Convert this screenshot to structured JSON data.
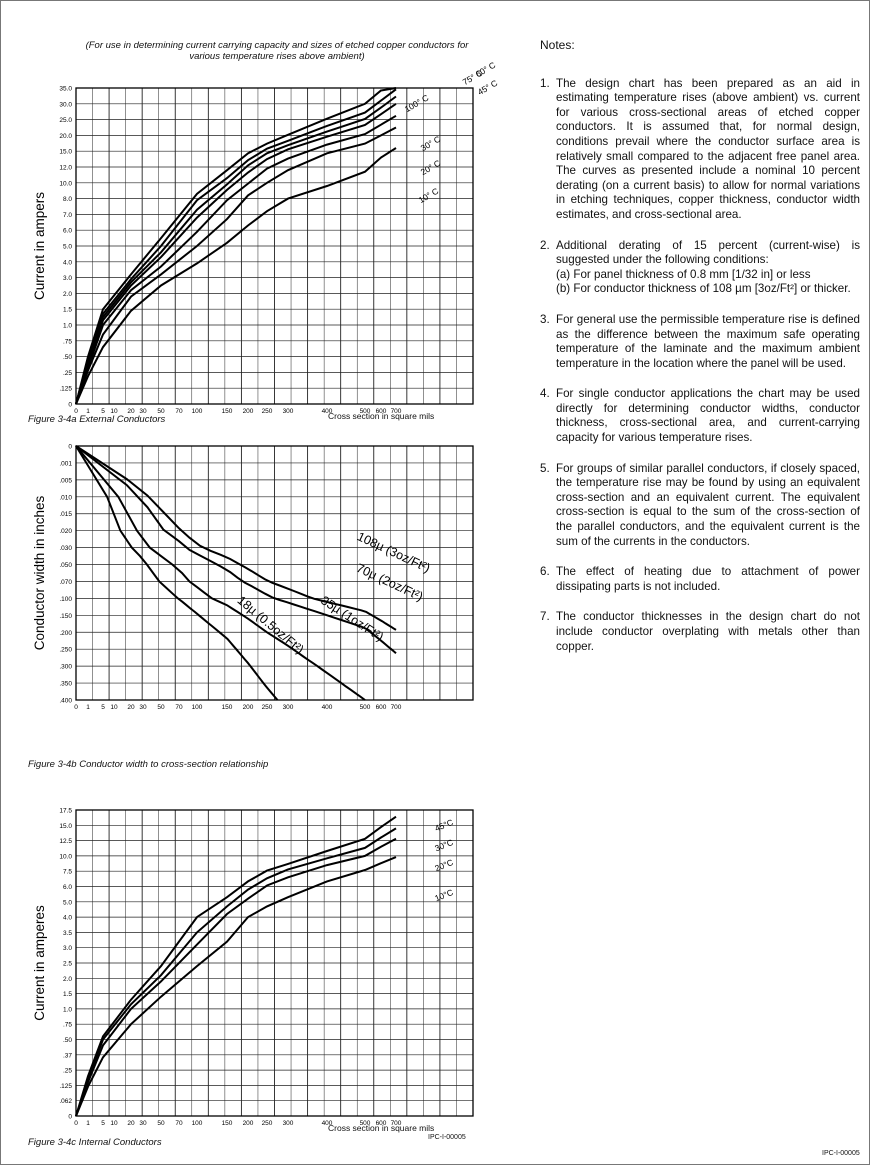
{
  "header_text": "(For use in determining current carrying capacity and sizes of etched copper conductors for various temperature rises above ambient)",
  "chart_data": [
    {
      "type": "line",
      "caption": "Figure 3-4a  External Conductors",
      "xlabel": "Cross section in square mils",
      "ylabel": "Current in ampers",
      "xticks": [
        "0",
        "1",
        "5",
        "10",
        "20",
        "30",
        "50",
        "70",
        "100",
        "150",
        "200",
        "250",
        "300",
        "400",
        "500",
        "600",
        "700"
      ],
      "yticks": [
        "35.0",
        "30.0",
        "25.0",
        "20.0",
        "15.0",
        "12.0",
        "10.0",
        "8.0",
        "7.0",
        "6.0",
        "5.0",
        "4.0",
        "3.0",
        "2.0",
        "1.5",
        "1.0",
        ".75",
        ".50",
        ".25",
        ".125",
        "0"
      ],
      "series": [
        {
          "name": "100° C",
          "x": [
            0,
            1,
            5,
            20,
            50,
            100,
            150,
            200,
            250,
            300,
            400,
            500,
            600,
            700
          ],
          "y": [
            0,
            0.5,
            1.5,
            3.2,
            5.5,
            8.6,
            11.6,
            14.6,
            17.4,
            20.2,
            25.3,
            30,
            34.2,
            37.6
          ]
        },
        {
          "name": "75° C",
          "x": [
            0,
            1,
            5,
            20,
            50,
            100,
            150,
            200,
            250,
            300,
            400,
            500,
            600,
            700
          ],
          "y": [
            0,
            0.45,
            1.35,
            2.9,
            5.0,
            7.9,
            10.6,
            13.3,
            15.8,
            18.3,
            23,
            27.2,
            31,
            34.6
          ]
        },
        {
          "name": "60° C",
          "x": [
            0,
            1,
            5,
            20,
            50,
            100,
            150,
            200,
            250,
            300,
            400,
            500,
            600,
            700
          ],
          "y": [
            0,
            0.4,
            1.25,
            2.7,
            4.6,
            7.3,
            9.8,
            12.3,
            14.6,
            16.9,
            21.2,
            25.2,
            28.8,
            32.3
          ]
        },
        {
          "name": "45° C",
          "x": [
            0,
            1,
            5,
            20,
            50,
            100,
            150,
            200,
            250,
            300,
            400,
            500,
            600,
            700
          ],
          "y": [
            0,
            0.37,
            1.15,
            2.5,
            4.3,
            6.8,
            9.1,
            11.3,
            13.5,
            15.6,
            19.6,
            23.3,
            26.7,
            30
          ]
        },
        {
          "name": "30° C",
          "x": [
            0,
            1,
            5,
            20,
            50,
            100,
            150,
            200,
            250,
            300,
            400,
            500,
            600,
            700
          ],
          "y": [
            0,
            0.32,
            1.0,
            2.2,
            3.7,
            5.9,
            7.9,
            9.9,
            11.8,
            13.6,
            17.1,
            20.4,
            23.4,
            26.2
          ]
        },
        {
          "name": "20° C",
          "x": [
            0,
            1,
            5,
            20,
            50,
            100,
            150,
            200,
            250,
            300,
            400,
            500,
            600,
            700
          ],
          "y": [
            0,
            0.28,
            0.85,
            1.9,
            3.2,
            5.0,
            6.7,
            8.4,
            10,
            11.6,
            14.6,
            17.4,
            20,
            22.5
          ]
        },
        {
          "name": "10° C",
          "x": [
            0,
            1,
            5,
            20,
            50,
            100,
            150,
            200,
            250,
            300,
            400,
            500,
            600,
            700
          ],
          "y": [
            0,
            0.22,
            0.65,
            1.45,
            2.5,
            3.9,
            5.2,
            6.3,
            7.2,
            8.0,
            9.6,
            11.4,
            13.8,
            16
          ]
        }
      ]
    },
    {
      "type": "line",
      "caption": "Figure 3-4b  Conductor width to cross-section relationship",
      "xlabel": "",
      "ylabel": "Conductor width in inches",
      "xticks": [
        "0",
        "1",
        "5",
        "10",
        "20",
        "30",
        "50",
        "70",
        "100",
        "150",
        "200",
        "250",
        "300",
        "400",
        "500",
        "600",
        "700"
      ],
      "yticks": [
        "0",
        ".001",
        ".005",
        ".010",
        ".015",
        ".020",
        ".030",
        ".050",
        ".070",
        ".100",
        ".150",
        ".200",
        ".250",
        ".300",
        ".350",
        ".400"
      ],
      "series": [
        {
          "name": "108µ (3oz/Ft²)",
          "x": [
            0,
            700
          ],
          "y": [
            0,
            0.193
          ]
        },
        {
          "name": "70µ (2oz/Ft²)",
          "x": [
            0,
            700
          ],
          "y": [
            0,
            0.262
          ]
        },
        {
          "name": "35µ (1oz/Ft²)",
          "x": [
            0,
            500
          ],
          "y": [
            0,
            0.4
          ]
        },
        {
          "name": "18µ (0.5oz/Ft²)",
          "x": [
            0,
            275
          ],
          "y": [
            0,
            0.4
          ]
        }
      ]
    },
    {
      "type": "line",
      "caption": "Figure 3-4c  Internal Conductors",
      "xlabel": "Cross section in square mils",
      "ylabel": "Current in amperes",
      "xticks": [
        "0",
        "1",
        "5",
        "10",
        "20",
        "30",
        "50",
        "70",
        "100",
        "150",
        "200",
        "250",
        "300",
        "400",
        "500",
        "600",
        "700"
      ],
      "yticks": [
        "17.5",
        "15.0",
        "12.5",
        "10.0",
        "7.5",
        "6.0",
        "5.0",
        "4.0",
        "3.5",
        "3.0",
        "2.5",
        "2.0",
        "1.5",
        "1.0",
        ".75",
        ".50",
        ".37",
        ".25",
        ".125",
        ".062",
        "0"
      ],
      "series": [
        {
          "name": "45°C",
          "x": [
            0,
            1,
            5,
            20,
            50,
            100,
            150,
            200,
            250,
            300,
            400,
            500,
            600,
            700
          ],
          "y": [
            0,
            0.2,
            0.55,
            1.3,
            2.4,
            4.0,
            5.3,
            6.5,
            7.6,
            8.7,
            10.8,
            12.8,
            14.7,
            16.4
          ]
        },
        {
          "name": "30°C",
          "x": [
            0,
            1,
            5,
            20,
            50,
            100,
            150,
            200,
            250,
            300,
            400,
            500,
            600,
            700
          ],
          "y": [
            0,
            0.17,
            0.5,
            1.15,
            2.1,
            3.5,
            4.7,
            5.8,
            6.8,
            7.8,
            9.6,
            11.3,
            13,
            14.5
          ]
        },
        {
          "name": "20°C",
          "x": [
            0,
            1,
            5,
            20,
            50,
            100,
            150,
            200,
            250,
            300,
            400,
            500,
            600,
            700
          ],
          "y": [
            0,
            0.15,
            0.45,
            1.0,
            1.9,
            3.1,
            4.2,
            5.2,
            6.1,
            6.9,
            8.5,
            10,
            11.5,
            12.8
          ]
        },
        {
          "name": "10°C",
          "x": [
            0,
            1,
            5,
            20,
            50,
            100,
            150,
            200,
            250,
            300,
            400,
            500,
            600,
            700
          ],
          "y": [
            0,
            0.12,
            0.35,
            0.75,
            1.4,
            2.4,
            3.2,
            4.0,
            4.7,
            5.3,
            6.5,
            7.7,
            8.8,
            9.8
          ]
        }
      ]
    }
  ],
  "footer_code_center": "IPC-I-00005",
  "footer_code_right": "IPC-I-00005",
  "notes": {
    "heading": "Notes:",
    "items": [
      {
        "num": "1.",
        "text": "The design chart has been prepared as an aid in estimating temperature rises (above ambient) vs. current for various cross-sectional areas of etched copper conductors. It is assumed that, for normal design, conditions prevail where the conductor surface area is relatively small compared to the adjacent free panel area. The curves as presented include a nominal 10 percent derating (on a current basis) to allow for normal variations in etching techniques, copper thickness, conductor width estimates, and cross-sectional area."
      },
      {
        "num": "2.",
        "text": "Additional derating of 15 percent (current-wise) is suggested under the following conditions:",
        "sub_a": "(a) For panel thickness of 0.8 mm [1/32 in] or less",
        "sub_b": "(b) For conductor thickness of 108 µm [3oz/Ft²] or thicker."
      },
      {
        "num": "3.",
        "text": "For general use the permissible temperature rise is defined as the difference between the maximum safe operating temperature of the laminate and the maximum ambient temperature in the location where the panel will be used."
      },
      {
        "num": "4.",
        "text": "For single conductor applications the chart may be used directly for determining conductor widths, conductor thickness, cross-sectional area, and current-carrying capacity for various temperature rises."
      },
      {
        "num": "5.",
        "text": "For groups of similar parallel conductors, if closely spaced, the temperature rise may be found by using an equivalent cross-section and an equivalent current. The equivalent cross-section is equal to the sum of the cross-section of the parallel conductors, and the equivalent current is the sum of the currents in the conductors."
      },
      {
        "num": "6.",
        "text": "The effect of heating due to attachment of power dissipating parts is not included."
      },
      {
        "num": "7.",
        "text": "The conductor thicknesses in the design chart do not include conductor overplating with metals other than copper."
      }
    ]
  }
}
